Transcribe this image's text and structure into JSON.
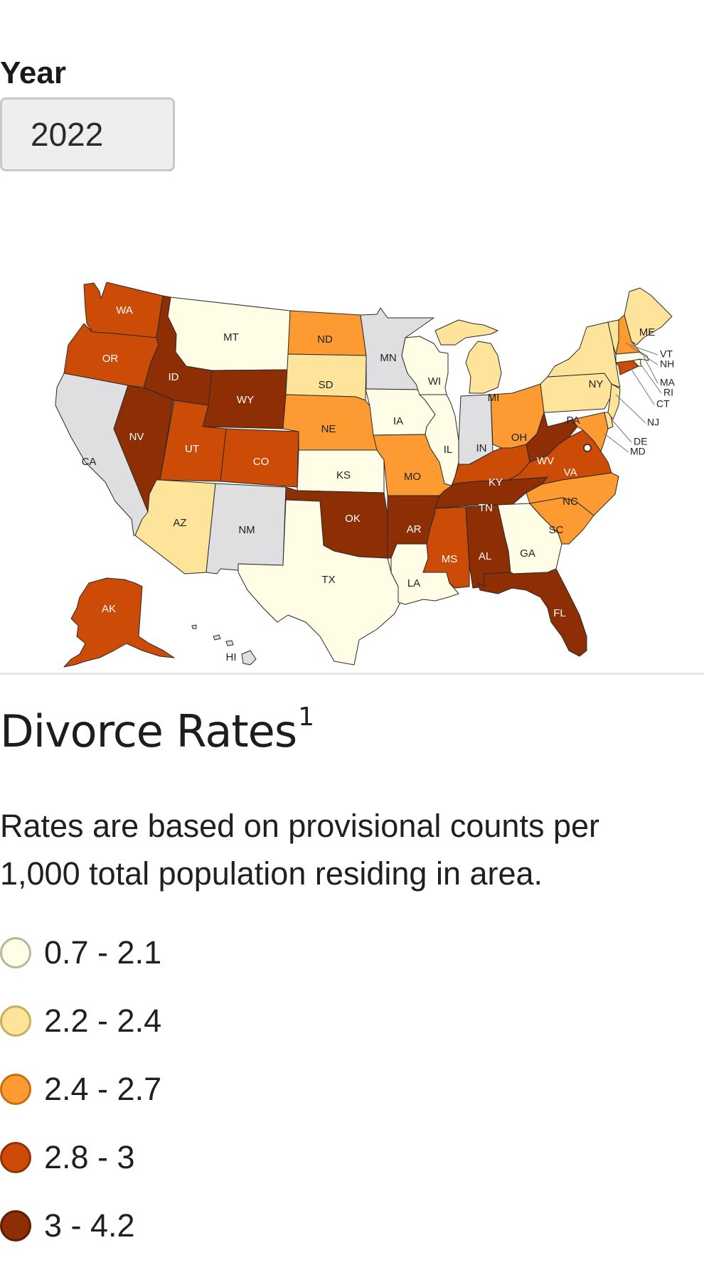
{
  "year_filter": {
    "label": "Year",
    "value": "2022"
  },
  "title": "Divorce Rates",
  "title_footnote": "1",
  "description": "Rates are based on provisional counts per 1,000 total population residing in area.",
  "legend": [
    {
      "label": "0.7 - 2.1",
      "color": "#fffde6",
      "border": "#b8b59a"
    },
    {
      "label": "2.2 - 2.4",
      "color": "#fde49a",
      "border": "#c9ae5c"
    },
    {
      "label": "2.4 - 2.7",
      "color": "#fd9a32",
      "border": "#c56f14"
    },
    {
      "label": "2.8 - 3",
      "color": "#cc4b06",
      "border": "#8f3303"
    },
    {
      "label": "3 - 4.2",
      "color": "#8e2e05",
      "border": "#5e1c02"
    }
  ],
  "no_data_color": "#dfdfe1",
  "map": {
    "states": {
      "WA": {
        "class": 3
      },
      "OR": {
        "class": 3
      },
      "ID": {
        "class": 4
      },
      "MT": {
        "class": 0
      },
      "WY": {
        "class": 4
      },
      "NV": {
        "class": 4
      },
      "CA": {
        "class": -1
      },
      "UT": {
        "class": 3
      },
      "CO": {
        "class": 3
      },
      "AZ": {
        "class": 1
      },
      "NM": {
        "class": -1
      },
      "ND": {
        "class": 2
      },
      "SD": {
        "class": 1
      },
      "NE": {
        "class": 2
      },
      "KS": {
        "class": 0
      },
      "OK": {
        "class": 4
      },
      "TX": {
        "class": 0
      },
      "MN": {
        "class": -1
      },
      "IA": {
        "class": 0
      },
      "MO": {
        "class": 2
      },
      "AR": {
        "class": 4
      },
      "LA": {
        "class": 0
      },
      "WI": {
        "class": 0
      },
      "IL": {
        "class": 0
      },
      "MI": {
        "class": 1
      },
      "IN": {
        "class": -1
      },
      "OH": {
        "class": 2
      },
      "KY": {
        "class": 3
      },
      "TN": {
        "class": 4
      },
      "MS": {
        "class": 3
      },
      "AL": {
        "class": 4
      },
      "GA": {
        "class": 0
      },
      "FL": {
        "class": 4
      },
      "SC": {
        "class": 2
      },
      "NC": {
        "class": 2
      },
      "VA": {
        "class": 3
      },
      "WV": {
        "class": 4
      },
      "PA": {
        "class": 1
      },
      "NY": {
        "class": 1
      },
      "ME": {
        "class": 1
      },
      "VT": {
        "class": 1
      },
      "NH": {
        "class": 2
      },
      "MA": {
        "class": 0
      },
      "RI": {
        "class": 0
      },
      "CT": {
        "class": 3
      },
      "NJ": {
        "class": 1
      },
      "DE": {
        "class": 1
      },
      "MD": {
        "class": 2
      },
      "AK": {
        "class": 3
      },
      "HI": {
        "class": -1
      }
    }
  }
}
